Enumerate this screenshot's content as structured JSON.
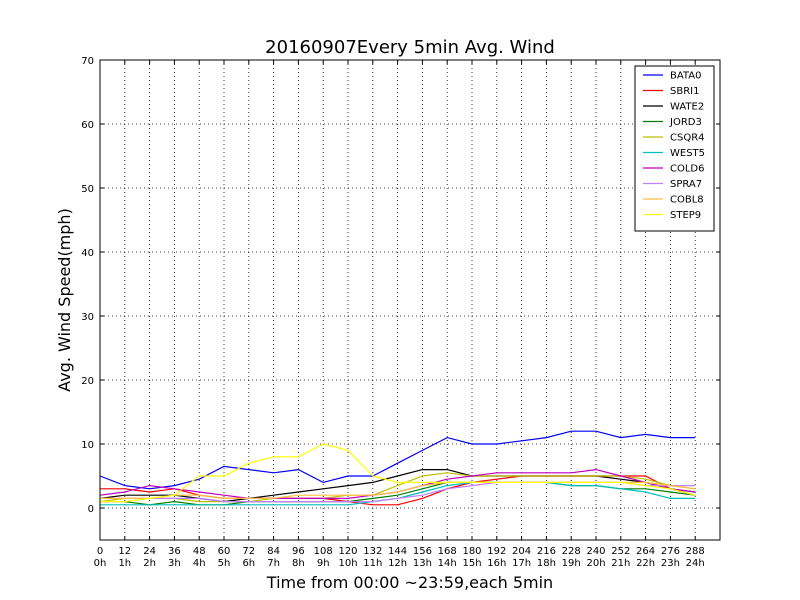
{
  "chart_data": {
    "type": "line",
    "title": "20160907Every 5min Avg. Wind",
    "xlabel": "Time from 00:00 ~23:59,each 5min",
    "ylabel": "Avg. Wind Speed(mph)",
    "xlim": [
      0,
      300
    ],
    "ylim": [
      -5,
      70
    ],
    "grid": true,
    "legend_position": "top-right",
    "x_ticks": [
      0,
      12,
      24,
      36,
      48,
      60,
      72,
      84,
      96,
      108,
      120,
      132,
      144,
      156,
      168,
      180,
      192,
      204,
      216,
      228,
      240,
      252,
      264,
      276,
      288
    ],
    "x_tick_hours": [
      "0h",
      "1h",
      "2h",
      "3h",
      "4h",
      "5h",
      "6h",
      "7h",
      "8h",
      "9h",
      "10h",
      "11h",
      "12h",
      "13h",
      "14h",
      "15h",
      "16h",
      "17h",
      "18h",
      "19h",
      "20h",
      "21h",
      "22h",
      "23h",
      "24h"
    ],
    "y_ticks": [
      0,
      10,
      20,
      30,
      40,
      50,
      60,
      70
    ],
    "series": [
      {
        "name": "BATA0",
        "color": "#0000ff",
        "x": [
          0,
          12,
          24,
          36,
          48,
          60,
          72,
          84,
          96,
          108,
          120,
          132,
          144,
          156,
          168,
          180,
          192,
          204,
          216,
          228,
          240,
          252,
          264,
          276,
          288
        ],
        "values": [
          5,
          3.5,
          3,
          3.5,
          4.5,
          6.5,
          6,
          5.5,
          6,
          4,
          5,
          5,
          7,
          9,
          11,
          10,
          10,
          10.5,
          11,
          12,
          12,
          11,
          11.5,
          11,
          11
        ]
      },
      {
        "name": "SBRI1",
        "color": "#ff0000",
        "x": [
          0,
          12,
          24,
          36,
          48,
          60,
          72,
          84,
          96,
          108,
          120,
          132,
          144,
          156,
          168,
          180,
          192,
          204,
          216,
          228,
          240,
          252,
          264,
          276,
          288
        ],
        "values": [
          3,
          3,
          2.5,
          3,
          2,
          1.5,
          1.5,
          1.5,
          1.5,
          1.5,
          1,
          0.5,
          0.5,
          1.5,
          3,
          4,
          4.5,
          5,
          5,
          5,
          5,
          5,
          5,
          3,
          2
        ]
      },
      {
        "name": "WATE2",
        "color": "#000000",
        "x": [
          0,
          12,
          24,
          36,
          48,
          60,
          72,
          84,
          96,
          108,
          120,
          132,
          144,
          156,
          168,
          180,
          192,
          204,
          216,
          228,
          240,
          252,
          264,
          276,
          288
        ],
        "values": [
          1.5,
          2,
          2,
          2,
          1.5,
          1,
          1.5,
          2,
          2.5,
          3,
          3.5,
          4,
          5,
          6,
          6,
          5,
          5,
          5,
          5,
          5,
          5,
          4.5,
          4,
          3,
          2.5
        ]
      },
      {
        "name": "JORD3",
        "color": "#008000",
        "x": [
          0,
          12,
          24,
          36,
          48,
          60,
          72,
          84,
          96,
          108,
          120,
          132,
          144,
          156,
          168,
          180,
          192,
          204,
          216,
          228,
          240,
          252,
          264,
          276,
          288
        ],
        "values": [
          1,
          1,
          0.5,
          1,
          0.5,
          0.5,
          1,
          1,
          1,
          1,
          1,
          1.5,
          2,
          3,
          4,
          4,
          4,
          4,
          4,
          3.5,
          3.5,
          3,
          3,
          2.5,
          2
        ]
      },
      {
        "name": "CSQR4",
        "color": "#bfbf00",
        "x": [
          0,
          12,
          24,
          36,
          48,
          60,
          72,
          84,
          96,
          108,
          120,
          132,
          144,
          156,
          168,
          180,
          192,
          204,
          216,
          228,
          240,
          252,
          264,
          276,
          288
        ],
        "values": [
          1,
          1.5,
          1.5,
          1.5,
          1,
          1,
          1,
          1.5,
          1.5,
          1.5,
          2,
          2,
          3.5,
          5,
          5.5,
          5,
          5,
          5,
          5,
          5,
          5,
          5,
          4.5,
          3.5,
          3
        ]
      },
      {
        "name": "WEST5",
        "color": "#00bfbf",
        "x": [
          0,
          12,
          24,
          36,
          48,
          60,
          72,
          84,
          96,
          108,
          120,
          132,
          144,
          156,
          168,
          180,
          192,
          204,
          216,
          228,
          240,
          252,
          264,
          276,
          288
        ],
        "values": [
          0.5,
          0.5,
          0.5,
          0.5,
          0.5,
          0.5,
          0.5,
          0.5,
          0.5,
          0.5,
          0.5,
          1,
          1.5,
          2.5,
          3.5,
          4,
          4,
          4,
          4,
          3.5,
          3.5,
          3,
          2.5,
          1.5,
          1.5
        ]
      },
      {
        "name": "COLD6",
        "color": "#bf00bf",
        "x": [
          0,
          12,
          24,
          36,
          48,
          60,
          72,
          84,
          96,
          108,
          120,
          132,
          144,
          156,
          168,
          180,
          192,
          204,
          216,
          228,
          240,
          252,
          264,
          276,
          288
        ],
        "values": [
          2,
          2.5,
          3.5,
          3,
          2.5,
          2,
          1.5,
          1.5,
          1.5,
          1.5,
          1.5,
          2,
          2.5,
          3.5,
          4.5,
          5,
          5.5,
          5.5,
          5.5,
          5.5,
          6,
          5,
          4,
          3,
          2.5
        ]
      },
      {
        "name": "SPRA7",
        "color": "#bf7fff",
        "x": [
          0,
          12,
          24,
          36,
          48,
          60,
          72,
          84,
          96,
          108,
          120,
          132,
          144,
          156,
          168,
          180,
          192,
          204,
          216,
          228,
          240,
          252,
          264,
          276,
          288
        ],
        "values": [
          1.5,
          1.5,
          1.5,
          1.5,
          1.5,
          1,
          1,
          1,
          1,
          1,
          1,
          1,
          1.5,
          2,
          3,
          3.5,
          4,
          4,
          4,
          4,
          4,
          4,
          3.5,
          3.5,
          3.5
        ]
      },
      {
        "name": "COBL8",
        "color": "#ffbf40",
        "x": [
          0,
          12,
          24,
          36,
          48,
          60,
          72,
          84,
          96,
          108,
          120,
          132,
          144,
          156,
          168,
          180,
          192,
          204,
          216,
          228,
          240,
          252,
          264,
          276,
          288
        ],
        "values": [
          1.5,
          1.5,
          1.5,
          2,
          2,
          1.5,
          1.5,
          1.5,
          2,
          2,
          2,
          2,
          2.5,
          3.5,
          4,
          4,
          4,
          4,
          4,
          4,
          4,
          4,
          4,
          3.5,
          3
        ]
      },
      {
        "name": "STEP9",
        "color": "#ffff00",
        "x": [
          0,
          12,
          24,
          36,
          48,
          60,
          72,
          84,
          96,
          108,
          120,
          132,
          144,
          156,
          168,
          180,
          192,
          204,
          216,
          228,
          240,
          252,
          264,
          276,
          288
        ],
        "values": [
          1,
          1,
          1.5,
          2,
          5,
          5,
          7,
          8,
          8,
          10,
          9,
          5,
          4,
          4,
          4,
          4,
          4,
          4,
          4,
          4,
          4,
          4,
          3.5,
          3,
          2
        ]
      }
    ]
  }
}
